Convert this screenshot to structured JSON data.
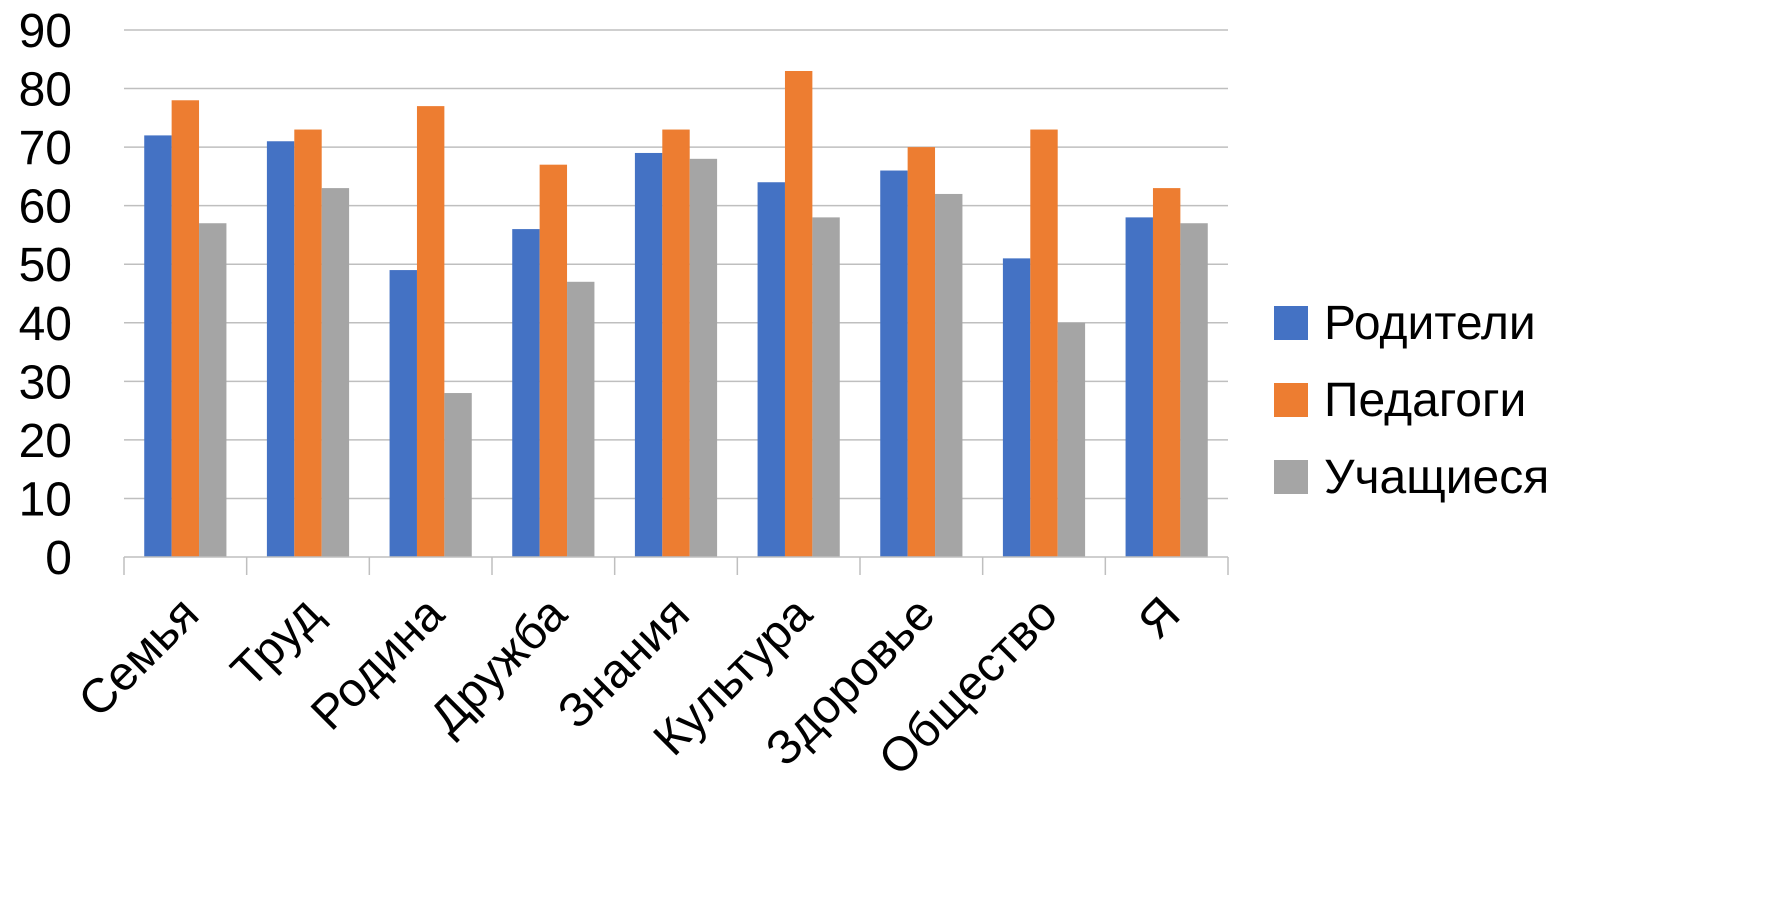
{
  "chart_data": {
    "type": "bar",
    "categories": [
      "Семья",
      "Труд",
      "Родина",
      "Дружба",
      "Знания",
      "Культура",
      "Здоровье",
      "Общество",
      "Я"
    ],
    "series": [
      {
        "name": "Родители",
        "color": "#4472C4",
        "values": [
          72,
          71,
          49,
          56,
          69,
          64,
          66,
          51,
          58
        ]
      },
      {
        "name": "Педагоги",
        "color": "#ED7D31",
        "values": [
          78,
          73,
          77,
          67,
          73,
          83,
          70,
          73,
          63
        ]
      },
      {
        "name": "Учащиеся",
        "color": "#A5A5A5",
        "values": [
          57,
          63,
          28,
          47,
          68,
          58,
          62,
          40,
          57
        ]
      }
    ],
    "ylim": [
      0,
      90
    ],
    "yticks": [
      0,
      10,
      20,
      30,
      40,
      50,
      60,
      70,
      80,
      90
    ],
    "grid": true,
    "legend_position": "right",
    "title": "",
    "xlabel": "",
    "ylabel": ""
  }
}
